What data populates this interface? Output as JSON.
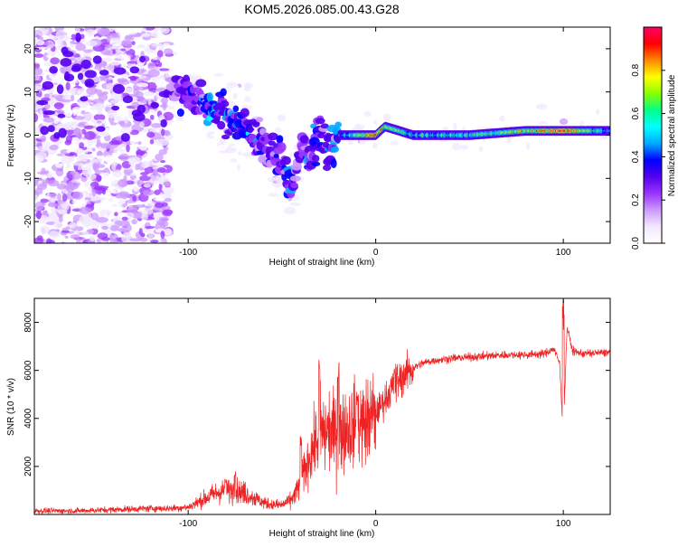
{
  "figure": {
    "title": "KOM5.2026.085.00.43.G28"
  },
  "colors": {
    "spectrogram_cmap": [
      "#ffffff",
      "#f2e8ff",
      "#cc99ff",
      "#9933ff",
      "#5500ee",
      "#0000ff",
      "#00aaff",
      "#00ffff",
      "#00ff88",
      "#88ff00",
      "#ffff00",
      "#ff8800",
      "#ff0000",
      "#ff0066"
    ],
    "snr_line": "#ee2222",
    "axis": "#000000"
  },
  "chart_data": [
    {
      "type": "heatmap",
      "title": "",
      "xlabel": "Height of straight line (km)",
      "ylabel": "Frequency (Hz)",
      "xlim": [
        -182,
        125
      ],
      "ylim": [
        -25,
        25
      ],
      "xticks": [
        -100,
        0,
        100
      ],
      "xtick_labels": [
        "-100",
        "0",
        "100"
      ],
      "yticks": [
        -20,
        -10,
        0,
        10,
        20
      ],
      "ytick_labels": [
        "-20",
        "-10",
        "0",
        "10",
        "20"
      ],
      "colorbar": {
        "label": "Normalized spectral amplitude",
        "range": [
          0.0,
          1.0
        ],
        "ticks": [
          0.0,
          0.2,
          0.4,
          0.6,
          0.8
        ],
        "tick_labels": [
          "0.0",
          "0.2",
          "0.4",
          "0.6",
          "0.8"
        ]
      },
      "ridge": {
        "x": [
          -182,
          -150,
          -120,
          -100,
          -90,
          -80,
          -70,
          -60,
          -50,
          -45,
          -40,
          -35,
          -30,
          -25,
          -20,
          0,
          5,
          20,
          50,
          80,
          100,
          125
        ],
        "frequency": [
          12,
          11,
          11,
          10,
          7,
          4,
          2,
          -2,
          -6,
          -12,
          -3,
          -4,
          0,
          -4,
          0,
          0,
          2,
          0,
          0,
          1,
          1,
          1
        ],
        "amplitude": [
          0.12,
          0.12,
          0.15,
          0.3,
          0.35,
          0.35,
          0.35,
          0.3,
          0.3,
          0.3,
          0.25,
          0.3,
          0.3,
          0.35,
          0.4,
          0.9,
          0.75,
          0.55,
          0.6,
          0.75,
          0.9,
          0.5
        ]
      }
    },
    {
      "type": "line",
      "title": "",
      "xlabel": "Height of straight line (km)",
      "ylabel": "SNR (10 * v/v)",
      "xlim": [
        -182,
        125
      ],
      "ylim": [
        0,
        9000
      ],
      "xticks": [
        -100,
        0,
        100
      ],
      "xtick_labels": [
        "-100",
        "0",
        "100"
      ],
      "yticks": [
        2000,
        4000,
        6000,
        8000
      ],
      "ytick_labels": [
        "2000",
        "4000",
        "6000",
        "8000"
      ],
      "series": [
        {
          "x": [
            -182,
            -160,
            -140,
            -120,
            -110,
            -100,
            -95,
            -90,
            -85,
            -80,
            -75,
            -70,
            -65,
            -60,
            -55,
            -50,
            -45,
            -40,
            -35,
            -30,
            -25,
            -20,
            -15,
            -10,
            -5,
            0,
            5,
            10,
            15,
            20,
            25,
            30,
            40,
            50,
            60,
            70,
            80,
            90,
            95,
            98,
            100,
            102,
            105,
            110,
            125
          ],
          "y": [
            150,
            150,
            200,
            250,
            250,
            300,
            500,
            700,
            900,
            1000,
            1000,
            900,
            700,
            500,
            400,
            400,
            600,
            1300,
            2500,
            3300,
            3500,
            3400,
            3600,
            3800,
            3800,
            4200,
            4800,
            5400,
            5800,
            6100,
            6300,
            6400,
            6500,
            6550,
            6600,
            6650,
            6650,
            6700,
            6900,
            6300,
            3300,
            7800,
            6800,
            6700,
            6750
          ],
          "peaks": [
            {
              "x": -80,
              "y": 1500
            },
            {
              "x": -75,
              "y": 1900
            },
            {
              "x": -40,
              "y": 3300
            },
            {
              "x": -30,
              "y": 6500
            },
            {
              "x": -20,
              "y": 6400
            },
            {
              "x": -10,
              "y": 5200
            },
            {
              "x": 10,
              "y": 6500
            },
            {
              "x": 100,
              "y": 9000
            }
          ]
        }
      ]
    }
  ]
}
